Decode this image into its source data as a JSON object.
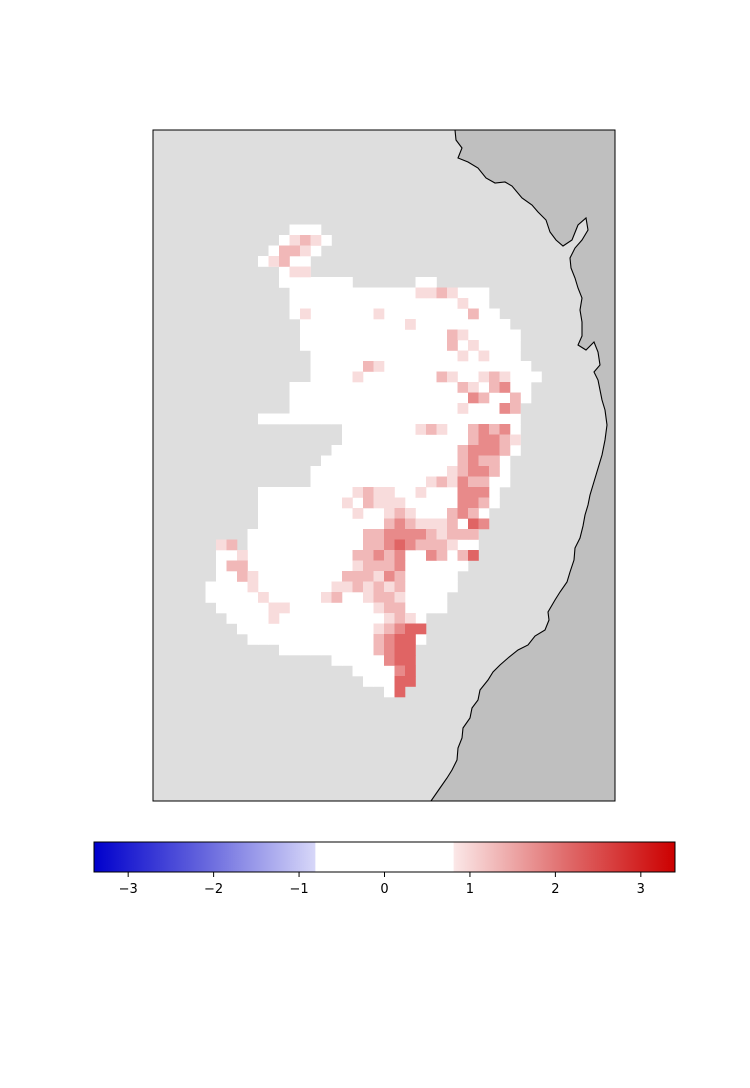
{
  "figure": {
    "type": "gridded-anomaly-map",
    "title": "",
    "colors": {
      "ocean": "#dedede",
      "land": "#bfbfbf",
      "coastline": "#000000",
      "frame": "#000000",
      "cmap_low": "#0000cc",
      "cmap_mid": "#ffffff",
      "cmap_high": "#cc0000"
    }
  },
  "colorbar": {
    "orientation": "horizontal",
    "range": [
      -3.4,
      3.4
    ],
    "ticks": [
      -3,
      -2,
      -1,
      0,
      1,
      2,
      3
    ],
    "tick_labels": [
      "−3",
      "−2",
      "−1",
      "0",
      "1",
      "2",
      "3"
    ],
    "neutral_band": [
      -0.8,
      0.8
    ]
  }
}
